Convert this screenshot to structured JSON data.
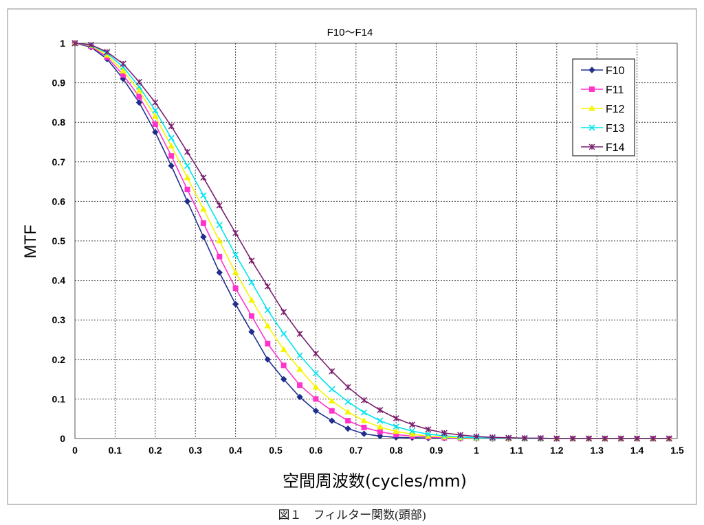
{
  "caption": "図１　フィルター関数(頭部)",
  "chart_data": {
    "type": "line",
    "title": "F10～F14",
    "xlabel": "空間周波数(cycles/mm)",
    "ylabel": "MTF",
    "xlim": [
      0,
      1.5
    ],
    "ylim": [
      0,
      1
    ],
    "xticks": [
      "0",
      "0.1",
      "0.2",
      "0.3",
      "0.4",
      "0.5",
      "0.6",
      "0.7",
      "0.8",
      "0.9",
      "1",
      "1.1",
      "1.2",
      "1.3",
      "1.4",
      "1.5"
    ],
    "yticks": [
      "0",
      "0.1",
      "0.2",
      "0.3",
      "0.4",
      "0.5",
      "0.6",
      "0.7",
      "0.8",
      "0.9",
      "1"
    ],
    "grid": true,
    "legend_position": "top-right",
    "x": [
      0,
      0.04,
      0.08,
      0.12,
      0.16,
      0.2,
      0.24,
      0.28,
      0.32,
      0.36,
      0.4,
      0.44,
      0.48,
      0.52,
      0.56,
      0.6,
      0.64,
      0.68,
      0.72,
      0.76,
      0.8,
      0.84,
      0.88,
      0.92,
      0.96,
      1.0,
      1.04,
      1.08,
      1.12,
      1.16,
      1.2,
      1.24,
      1.28,
      1.32,
      1.36,
      1.4,
      1.44,
      1.48
    ],
    "series": [
      {
        "name": "F10",
        "color": "#1f2f8c",
        "marker": "diamond",
        "values": [
          1.0,
          0.99,
          0.96,
          0.91,
          0.85,
          0.775,
          0.69,
          0.6,
          0.51,
          0.42,
          0.34,
          0.27,
          0.2,
          0.15,
          0.105,
          0.07,
          0.045,
          0.025,
          0.012,
          0.006,
          0.003,
          0.002,
          0.001,
          0.001,
          0,
          0,
          0,
          0,
          0,
          0,
          0,
          0,
          0,
          0,
          0,
          0,
          0,
          0
        ]
      },
      {
        "name": "F11",
        "color": "#ff33cc",
        "marker": "square",
        "values": [
          1.0,
          0.992,
          0.965,
          0.92,
          0.865,
          0.795,
          0.715,
          0.63,
          0.545,
          0.46,
          0.38,
          0.31,
          0.24,
          0.185,
          0.135,
          0.1,
          0.07,
          0.045,
          0.028,
          0.017,
          0.01,
          0.006,
          0.004,
          0.002,
          0.001,
          0.001,
          0,
          0,
          0,
          0,
          0,
          0,
          0,
          0,
          0,
          0,
          0,
          0
        ]
      },
      {
        "name": "F12",
        "color": "#f5f500",
        "marker": "triangle",
        "values": [
          1.0,
          0.994,
          0.97,
          0.93,
          0.88,
          0.815,
          0.74,
          0.66,
          0.58,
          0.5,
          0.42,
          0.35,
          0.285,
          0.225,
          0.175,
          0.13,
          0.095,
          0.067,
          0.045,
          0.029,
          0.018,
          0.011,
          0.006,
          0.004,
          0.002,
          0.001,
          0.001,
          0,
          0,
          0,
          0,
          0,
          0,
          0,
          0,
          0,
          0,
          0
        ]
      },
      {
        "name": "F13",
        "color": "#00e5ee",
        "marker": "x",
        "values": [
          1.0,
          0.995,
          0.975,
          0.94,
          0.89,
          0.83,
          0.76,
          0.69,
          0.615,
          0.54,
          0.465,
          0.395,
          0.325,
          0.265,
          0.21,
          0.165,
          0.125,
          0.093,
          0.066,
          0.045,
          0.03,
          0.019,
          0.011,
          0.007,
          0.004,
          0.002,
          0.001,
          0.001,
          0,
          0,
          0,
          0,
          0,
          0,
          0,
          0,
          0,
          0
        ]
      },
      {
        "name": "F14",
        "color": "#7a1f6e",
        "marker": "star",
        "values": [
          1.0,
          0.996,
          0.978,
          0.948,
          0.902,
          0.85,
          0.79,
          0.725,
          0.66,
          0.59,
          0.52,
          0.45,
          0.385,
          0.32,
          0.265,
          0.215,
          0.17,
          0.13,
          0.097,
          0.072,
          0.051,
          0.035,
          0.023,
          0.014,
          0.009,
          0.005,
          0.003,
          0.002,
          0.001,
          0.001,
          0,
          0,
          0,
          0,
          0,
          0,
          0,
          0
        ]
      }
    ]
  }
}
